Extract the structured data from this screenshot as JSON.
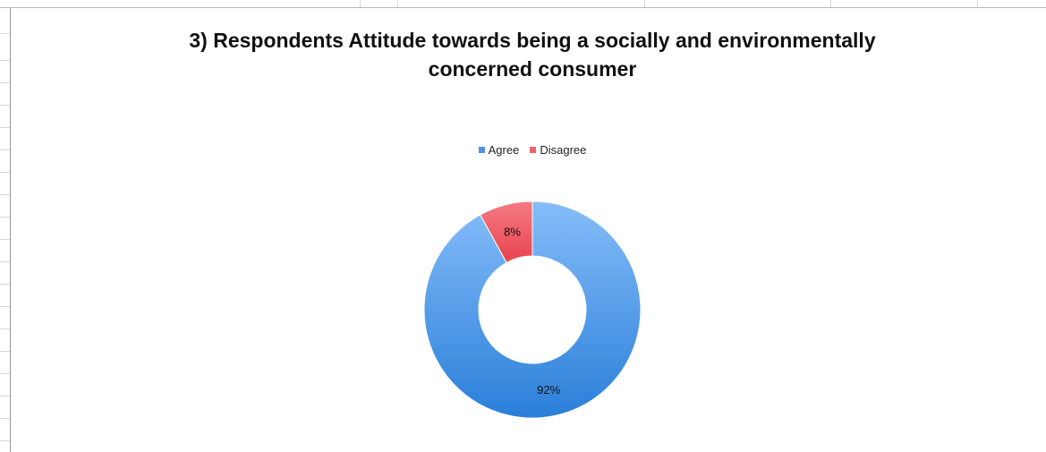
{
  "chart_data": {
    "type": "pie",
    "title": "3) Respondents Attitude towards being a socially and environmentally concerned consumer",
    "categories": [
      "Agree",
      "Disagree"
    ],
    "values": [
      92,
      8
    ],
    "data_labels": [
      "92%",
      "8%"
    ],
    "colors": [
      "#4b95e6",
      "#f0606b"
    ],
    "legend": "top",
    "donut": true
  }
}
